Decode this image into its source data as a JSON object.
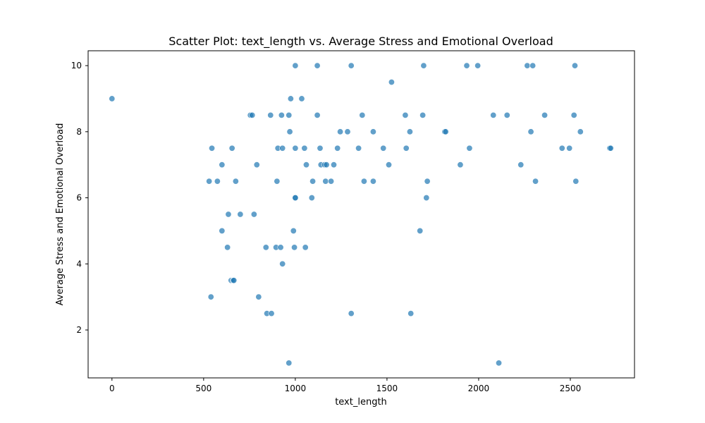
{
  "chart_data": {
    "type": "scatter",
    "title": "Scatter Plot: text_length vs. Average Stress and Emotional Overload",
    "xlabel": "text_length",
    "ylabel": "Average Stress and Emotional Overload",
    "xlim": [
      -130,
      2850
    ],
    "ylim": [
      0.55,
      10.45
    ],
    "xticks": [
      0,
      500,
      1000,
      1500,
      2000,
      2500
    ],
    "yticks": [
      2,
      4,
      6,
      8,
      10
    ],
    "grid": false,
    "color": "#1f77b4",
    "series": [
      {
        "x": [
          0,
          530,
          545,
          540,
          575,
          600,
          600,
          630,
          635,
          650,
          655,
          660,
          665,
          675,
          700,
          755,
          765,
          775,
          790,
          800,
          840,
          845,
          865,
          870,
          895,
          900,
          905,
          920,
          925,
          930,
          930,
          965,
          965,
          970,
          975,
          990,
          995,
          1000,
          1000,
          1000,
          1000,
          1035,
          1050,
          1055,
          1060,
          1090,
          1095,
          1120,
          1120,
          1135,
          1140,
          1160,
          1165,
          1170,
          1195,
          1210,
          1230,
          1245,
          1285,
          1305,
          1305,
          1345,
          1365,
          1375,
          1425,
          1425,
          1480,
          1510,
          1525,
          1600,
          1605,
          1625,
          1630,
          1680,
          1695,
          1700,
          1715,
          1720,
          1815,
          1820,
          1900,
          1935,
          1950,
          1995,
          2080,
          2110,
          2155,
          2230,
          2265,
          2285,
          2295,
          2310,
          2360,
          2455,
          2495,
          2520,
          2525,
          2530,
          2555,
          2715,
          2720
        ],
        "y": [
          9,
          6.5,
          7.5,
          3,
          6.5,
          7,
          5,
          4.5,
          5.5,
          3.5,
          7.5,
          3.5,
          3.5,
          6.5,
          5.5,
          8.5,
          8.5,
          5.5,
          7,
          3,
          4.5,
          2.5,
          8.5,
          2.5,
          4.5,
          6.5,
          7.5,
          4.5,
          8.5,
          7.5,
          4,
          8.5,
          1,
          8,
          9,
          5,
          4.5,
          10,
          7.5,
          6,
          6,
          9,
          7.5,
          4.5,
          7,
          6,
          6.5,
          10,
          8.5,
          7.5,
          7,
          7,
          6.5,
          7,
          6.5,
          7,
          7.5,
          8,
          8,
          10,
          2.5,
          7.5,
          8.5,
          6.5,
          8,
          6.5,
          7.5,
          7,
          9.5,
          8.5,
          7.5,
          8,
          2.5,
          5,
          8.5,
          10,
          6,
          6.5,
          8,
          8,
          7,
          10,
          7.5,
          10,
          8.5,
          1,
          8.5,
          7,
          10,
          8,
          10,
          6.5,
          8.5,
          7.5,
          7.5,
          8.5,
          10,
          6.5,
          8,
          7.5,
          7.5
        ]
      }
    ]
  }
}
